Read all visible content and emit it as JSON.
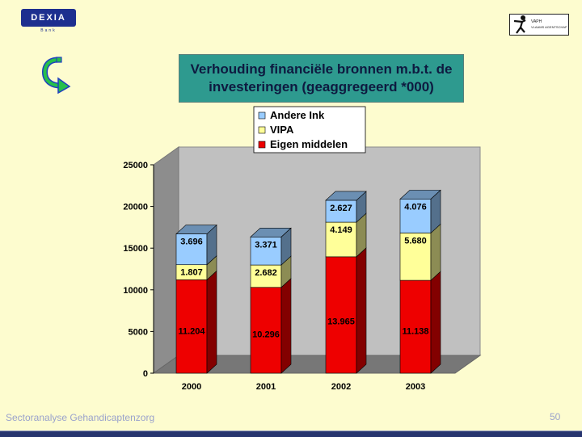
{
  "logo_left": {
    "text": "DEXIA",
    "sub": "Bank"
  },
  "logo_right": {
    "line1": "VAPH",
    "line2": "VLAAMS AGENTSCHAP"
  },
  "icons": {
    "back": "curved-arrow-icon"
  },
  "footer": {
    "text": "Sectoranalyse Gehandicaptenzorg",
    "page": "50"
  },
  "chart_data": {
    "type": "bar",
    "stacked": true,
    "title_line1": "Verhouding financiële bronnen m.b.t. de",
    "title_line2": "investeringen (geaggregeerd *000)",
    "categories": [
      "2000",
      "2001",
      "2002",
      "2003"
    ],
    "series": [
      {
        "name": "Eigen middelen",
        "color": "#ee0000",
        "labels": [
          "11.204",
          "10.296",
          "13.965",
          "11.138"
        ],
        "values": [
          11204,
          10296,
          13965,
          11138
        ]
      },
      {
        "name": "VIPA",
        "color": "#ffff99",
        "labels": [
          "1.807",
          "2.682",
          "4.149",
          "5.680"
        ],
        "values": [
          1807,
          2682,
          4149,
          5680
        ]
      },
      {
        "name": "Andere Ink",
        "color": "#99ccff",
        "labels": [
          "3.696",
          "3.371",
          "2.627",
          "4.076"
        ],
        "values": [
          3696,
          3371,
          2627,
          4076
        ]
      }
    ],
    "legend_order": [
      "Andere Ink",
      "VIPA",
      "Eigen middelen"
    ],
    "legend_position": "top",
    "yticks": [
      "0",
      "5000",
      "10000",
      "15000",
      "20000",
      "25000"
    ],
    "ylim": [
      0,
      25000
    ],
    "grid": false
  }
}
